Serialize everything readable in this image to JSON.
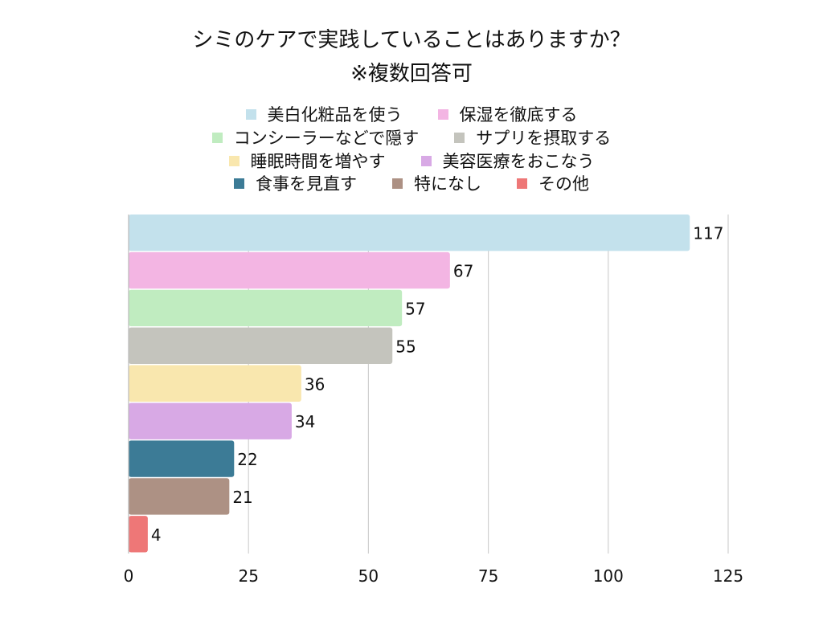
{
  "chart_data": {
    "type": "bar",
    "orientation": "horizontal",
    "title": "シミのケアで実践していることはありますか？",
    "subtitle": "※複数回答可",
    "categories": [
      "美白化粧品を使う",
      "保湿を徹底する",
      "コンシーラーなどで隠す",
      "サプリを摂取する",
      "睡眠時間を増やす",
      "美容医療をおこなう",
      "食事を見直す",
      "特になし",
      "その他"
    ],
    "values": [
      117,
      67,
      57,
      55,
      36,
      34,
      22,
      21,
      4
    ],
    "colors": [
      "#c3e1ec",
      "#f3b5e3",
      "#c0ecc0",
      "#c4c4bd",
      "#f9e7ae",
      "#d8a9e5",
      "#3c7b96",
      "#ad9184",
      "#ee7777"
    ],
    "xlim": [
      0,
      125
    ],
    "xticks": [
      "0",
      "25",
      "50",
      "75",
      "100",
      "125"
    ],
    "grid": true,
    "legend_position": "top",
    "data_labels": true
  }
}
